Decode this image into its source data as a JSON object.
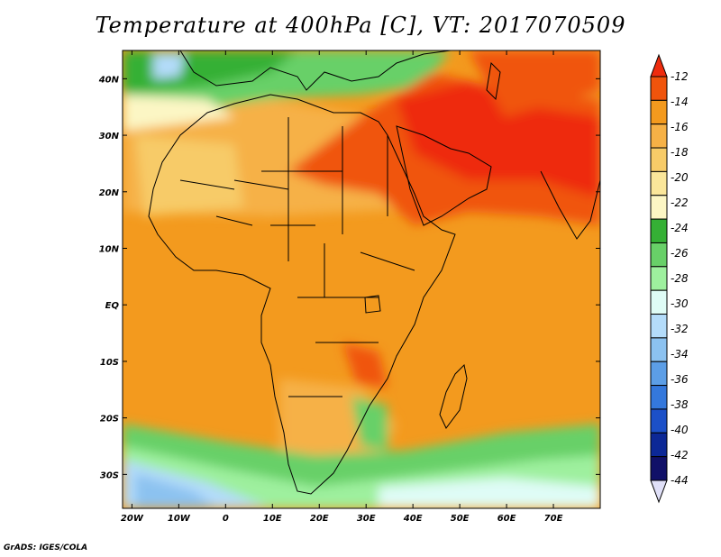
{
  "title": "Temperature at 400hPa [C], VT: 2017070509",
  "credit": "GrADS: IGES/COLA",
  "map": {
    "lon_range": [
      -22,
      80
    ],
    "lat_range": [
      -36,
      45
    ],
    "lon_ticks": [
      {
        "value": -20,
        "label": "20W"
      },
      {
        "value": -10,
        "label": "10W"
      },
      {
        "value": 0,
        "label": "0"
      },
      {
        "value": 10,
        "label": "10E"
      },
      {
        "value": 20,
        "label": "20E"
      },
      {
        "value": 30,
        "label": "30E"
      },
      {
        "value": 40,
        "label": "40E"
      },
      {
        "value": 50,
        "label": "50E"
      },
      {
        "value": 60,
        "label": "60E"
      },
      {
        "value": 70,
        "label": "70E"
      }
    ],
    "lat_ticks": [
      {
        "value": 40,
        "label": "40N"
      },
      {
        "value": 30,
        "label": "30N"
      },
      {
        "value": 20,
        "label": "20N"
      },
      {
        "value": 10,
        "label": "10N"
      },
      {
        "value": 0,
        "label": "EQ"
      },
      {
        "value": -10,
        "label": "10S"
      },
      {
        "value": -20,
        "label": "20S"
      },
      {
        "value": -30,
        "label": "30S"
      }
    ]
  },
  "colorbar": {
    "labels": [
      "-12",
      "-14",
      "-16",
      "-18",
      "-20",
      "-22",
      "-24",
      "-26",
      "-28",
      "-30",
      "-32",
      "-34",
      "-36",
      "-38",
      "-40",
      "-42",
      "-44"
    ],
    "colors": [
      "#ee2c0e",
      "#f0540c",
      "#f39a1e",
      "#f6b146",
      "#f7cb68",
      "#fae69a",
      "#fcf6c4",
      "#35b035",
      "#68d068",
      "#9ef09e",
      "#dffcf6",
      "#b4dcfa",
      "#8cc2f0",
      "#5c9ee6",
      "#3478dc",
      "#1c50c8",
      "#0c2896",
      "#101068",
      "#e0e0f8"
    ]
  }
}
